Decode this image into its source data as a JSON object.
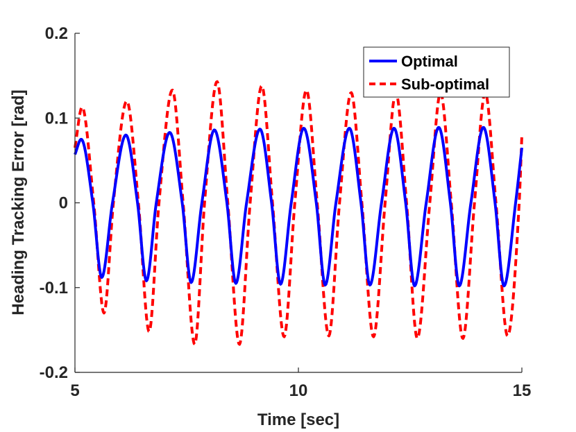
{
  "chart_data": {
    "type": "line",
    "title": "",
    "xlabel": "Time [sec]",
    "ylabel": "Heading Tracking Error [rad]",
    "xlim": [
      5,
      15
    ],
    "ylim": [
      -0.2,
      0.2
    ],
    "xticks": [
      5,
      10,
      15
    ],
    "xtick_labels": [
      "5",
      "10",
      "15"
    ],
    "yticks": [
      0.2,
      0.1,
      0,
      -0.1,
      -0.2
    ],
    "ytick_labels": [
      "0.2",
      "0.1",
      "0",
      "-0.1",
      "-0.2"
    ],
    "grid": false,
    "legend_position": "top-right",
    "series": [
      {
        "name": "Optimal",
        "color": "#0000ff",
        "style": "solid",
        "x": [
          5.0,
          5.14,
          5.4,
          5.6,
          5.84,
          6.14,
          6.4,
          6.6,
          6.82,
          7.12,
          7.4,
          7.6,
          7.84,
          8.12,
          8.4,
          8.6,
          8.84,
          9.14,
          9.4,
          9.6,
          9.84,
          10.12,
          10.4,
          10.6,
          10.84,
          11.14,
          11.4,
          11.6,
          11.86,
          12.14,
          12.4,
          12.6,
          12.86,
          13.14,
          13.4,
          13.6,
          13.86,
          14.14,
          14.4,
          14.6,
          14.86,
          15.0
        ],
        "y": [
          0.057,
          0.075,
          0.0,
          -0.088,
          0.0,
          0.08,
          0.0,
          -0.092,
          0.0,
          0.083,
          0.0,
          -0.094,
          0.0,
          0.086,
          0.0,
          -0.095,
          0.0,
          0.087,
          0.0,
          -0.096,
          0.0,
          0.088,
          0.0,
          -0.097,
          0.0,
          0.088,
          0.0,
          -0.097,
          0.0,
          0.088,
          0.0,
          -0.098,
          0.0,
          0.089,
          0.0,
          -0.098,
          0.0,
          0.089,
          0.0,
          -0.098,
          0.0,
          0.065
        ]
      },
      {
        "name": "Sub-optimal",
        "color": "#ff0000",
        "style": "dashed",
        "x": [
          5.0,
          5.16,
          5.42,
          5.65,
          5.86,
          6.16,
          6.42,
          6.66,
          6.88,
          7.18,
          7.42,
          7.68,
          7.9,
          8.18,
          8.42,
          8.68,
          8.92,
          9.18,
          9.42,
          9.68,
          9.92,
          10.18,
          10.42,
          10.68,
          10.92,
          11.18,
          11.42,
          11.68,
          11.94,
          12.18,
          12.42,
          12.66,
          12.94,
          13.18,
          13.42,
          13.68,
          13.94,
          14.18,
          14.42,
          14.68,
          14.94,
          15.0
        ],
        "y": [
          0.065,
          0.113,
          0.0,
          -0.13,
          0.0,
          0.12,
          0.0,
          -0.152,
          0.0,
          0.133,
          0.0,
          -0.167,
          0.0,
          0.143,
          0.0,
          -0.167,
          0.0,
          0.138,
          0.0,
          -0.158,
          0.0,
          0.133,
          0.0,
          -0.157,
          0.0,
          0.13,
          0.0,
          -0.158,
          0.0,
          0.13,
          0.0,
          -0.16,
          0.0,
          0.13,
          0.0,
          -0.16,
          0.0,
          0.13,
          0.0,
          -0.157,
          0.0,
          0.08
        ]
      }
    ]
  }
}
